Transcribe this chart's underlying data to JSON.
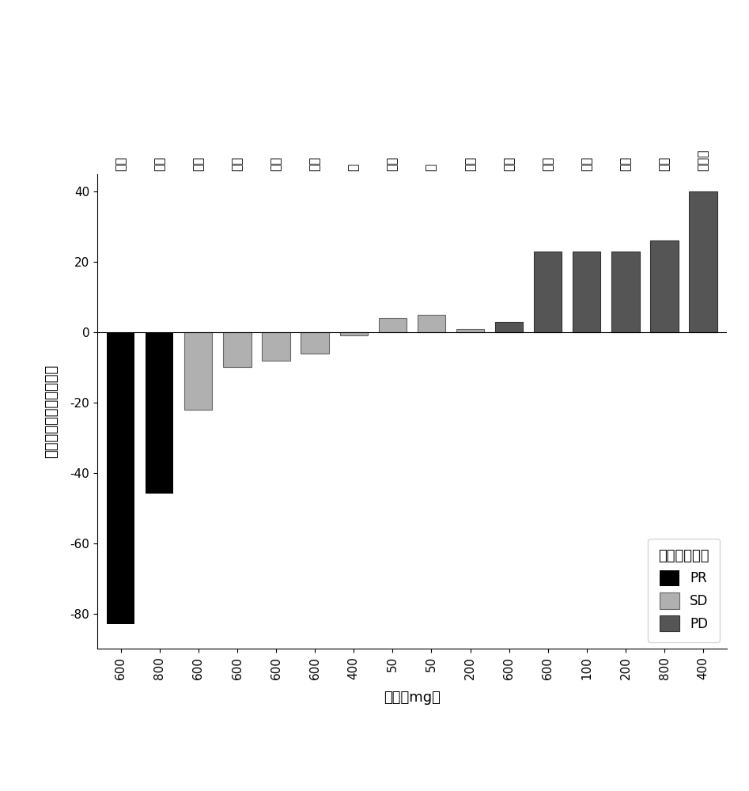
{
  "values": [
    -83,
    -46,
    -22,
    -10,
    -8,
    -6,
    -1,
    4,
    5,
    1,
    3,
    23,
    23,
    23,
    26,
    40
  ],
  "bar_fill_colors": [
    "#000000",
    "#000000",
    "#b0b0b0",
    "#b0b0b0",
    "#b0b0b0",
    "#b0b0b0",
    "#b0b0b0",
    "#b0b0b0",
    "#b0b0b0",
    "#b0b0b0",
    "#555555",
    "#555555",
    "#555555",
    "#555555",
    "#555555",
    "#555555"
  ],
  "bar_edge_colors": [
    "none",
    "none",
    "#666666",
    "#666666",
    "#666666",
    "#666666",
    "#666666",
    "#666666",
    "#666666",
    "#666666",
    "#333333",
    "#333333",
    "#333333",
    "#333333",
    "#333333",
    "#333333"
  ],
  "dose_labels": [
    "600",
    "800",
    "600",
    "600",
    "600",
    "600",
    "400",
    "50",
    "50",
    "200",
    "600",
    "600",
    "100",
    "200",
    "800",
    "400"
  ],
  "cancer_labels": [
    "卵巢",
    "卵巢",
    "胰腹",
    "卵巢",
    "胰腹",
    "胰腹",
    "肾",
    "胰腹",
    "肺",
    "间皮",
    "胆囊",
    "肠道",
    "乳腹",
    "卵巢",
    "卵巢",
    "肾上腑"
  ],
  "response_colors": {
    "PR": "#000000",
    "SD": "#b0b0b0",
    "PD": "#555555"
  },
  "response_edge_colors": {
    "PR": "none",
    "SD": "#666666",
    "PD": "#333333"
  },
  "response_types": [
    "PR",
    "PR",
    "SD",
    "SD",
    "SD",
    "SD",
    "SD",
    "SD",
    "SD",
    "SD",
    "PD",
    "PD",
    "PD",
    "PD",
    "PD",
    "PD"
  ],
  "ylabel": "与基线相比的变化百分比",
  "xlabel": "剂量（mg）",
  "legend_title": "总体反应最佳",
  "ylim": [
    -90,
    45
  ],
  "yticks": [
    -80,
    -60,
    -40,
    -20,
    0,
    20,
    40
  ],
  "bar_width": 0.72,
  "fontsize_ticks": 11,
  "fontsize_labels": 13,
  "fontsize_legend": 12,
  "fontsize_legend_title": 13,
  "fontsize_cancer": 11
}
